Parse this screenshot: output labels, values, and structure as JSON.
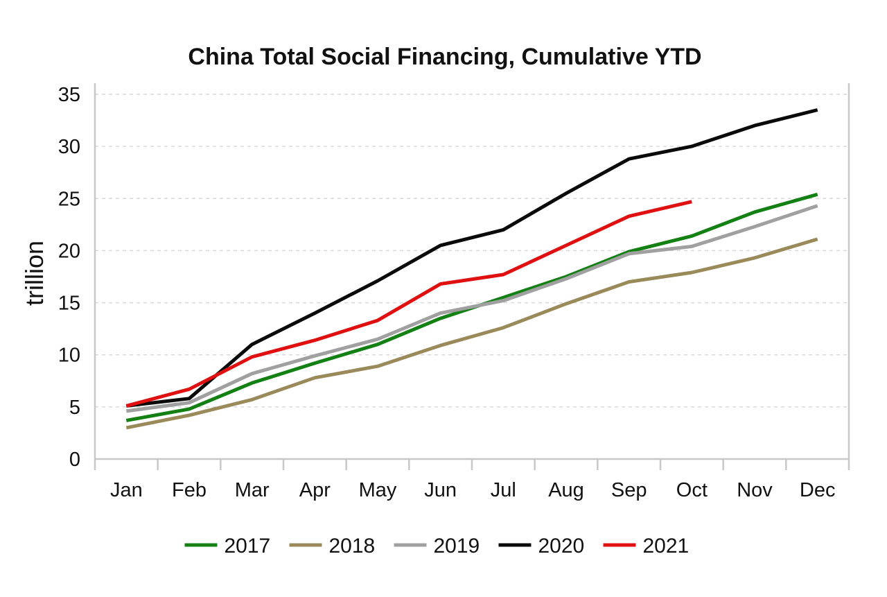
{
  "chart_data": {
    "type": "line",
    "title": "China Total Social Financing, Cumulative YTD",
    "xlabel": "",
    "ylabel": "trillion",
    "categories": [
      "Jan",
      "Feb",
      "Mar",
      "Apr",
      "May",
      "Jun",
      "Jul",
      "Aug",
      "Sep",
      "Oct",
      "Nov",
      "Dec"
    ],
    "ylim": [
      0,
      35
    ],
    "yticks": [
      "0",
      "5",
      "10",
      "15",
      "20",
      "25",
      "30",
      "35"
    ],
    "grid": true,
    "legend_position": "bottom",
    "series": [
      {
        "name": "2017",
        "color": "#138013",
        "values": [
          3.7,
          4.8,
          7.3,
          9.2,
          11.0,
          13.5,
          15.5,
          17.5,
          19.9,
          21.4,
          23.7,
          25.4
        ]
      },
      {
        "name": "2018",
        "color": "#9a8a5a",
        "values": [
          3.0,
          4.2,
          5.7,
          7.8,
          8.9,
          10.9,
          12.6,
          14.9,
          17.0,
          17.9,
          19.3,
          21.1
        ]
      },
      {
        "name": "2019",
        "color": "#a0a0a0",
        "values": [
          4.6,
          5.4,
          8.2,
          9.9,
          11.5,
          14.0,
          15.2,
          17.3,
          19.7,
          20.4,
          22.3,
          24.3
        ]
      },
      {
        "name": "2020",
        "color": "#0a0a0a",
        "values": [
          5.1,
          5.8,
          11.0,
          14.0,
          17.1,
          20.5,
          22.0,
          25.5,
          28.8,
          30.0,
          32.0,
          33.5
        ]
      },
      {
        "name": "2021",
        "color": "#e01010",
        "values": [
          5.1,
          6.7,
          9.8,
          11.4,
          13.3,
          16.8,
          17.7,
          20.5,
          23.3,
          24.7,
          null,
          null
        ]
      }
    ]
  }
}
